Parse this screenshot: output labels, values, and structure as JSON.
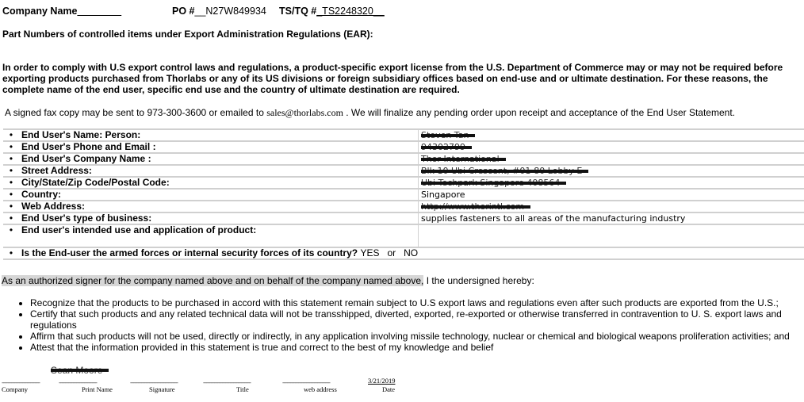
{
  "header": {
    "company_label": "Company Name",
    "company_value": "________",
    "po_label": "PO #",
    "po_value": "__N27W849934",
    "ts_label": "TS/TQ #",
    "ts_value": "_TS2248320__"
  },
  "subtitle": "Part Numbers of controlled items under Export Administration Regulations (EAR):",
  "intro": "In order to comply with U.S export control laws and regulations, a product-specific export license from the U.S. Department of Commerce may or may not be required before exporting products purchased from Thorlabs or any of its US divisions or foreign subsidiary offices based on end-use and or ultimate destination.  For these reasons, the complete name of the end user, specific end use and the country of ultimate destination are required.",
  "fax_note": {
    "before": "A signed fax copy may be sent to 973-300-3600 or emailed to ",
    "email": "sales@thorlabs.com",
    "after": " .    We will finalize any pending order upon receipt and acceptance of the End User Statement."
  },
  "form_rows": [
    {
      "label": "End User's Name: Person:",
      "value": "Steven Tan",
      "redacted": true
    },
    {
      "label": "End User's Phone and Email :",
      "value": "94302799",
      "redacted": true
    },
    {
      "label": "End User's Company Name :",
      "value": "Thor International",
      "redacted": true
    },
    {
      "label": "Street Address:",
      "value": "Blk 10 Ubi Crescent, #01-80 Lobby E",
      "redacted": true
    },
    {
      "label": "City/State/Zip Code/Postal Code:",
      "value": "Ubi Techpark Singapore 408564",
      "redacted": true
    },
    {
      "label": "Country:",
      "value": "Singapore",
      "redacted": false
    },
    {
      "label": "Web Address:",
      "value": "http://www.thorintl.com",
      "redacted": true
    },
    {
      "label": "End User's type of business:",
      "value": "supplies fasteners to all areas of the manufacturing industry",
      "redacted": false
    },
    {
      "label": "End user's intended use and application of product:",
      "value": "",
      "redacted": false
    }
  ],
  "armed_forces": {
    "question": "Is the End-user the armed forces or internal security forces of its country?",
    "options": "YES   or   NO"
  },
  "authorization": {
    "highlighted": "As an authorized signer for the company named above and on behalf of the company named above,",
    "rest": " I the undersigned hereby:"
  },
  "bullets": [
    "Recognize that the products to be purchased in accord with this statement remain subject to U.S export laws and regulations even after such products are exported from the U.S.;",
    "Certify that such products and any related technical data will not be transshipped, diverted, exported, re-exported or otherwise transferred in contravention to U. S. export laws and regulations",
    "Affirm that such products will not be used, directly or indirectly, in any application involving missile technology, nuclear or chemical and biological weapons proliferation activities; and",
    "Attest that the information provided in this statement is true and correct to the best of my knowledge and belief"
  ],
  "signature": {
    "print_name": "Sean Moore",
    "date": "3/21/2019",
    "labels": [
      "Company",
      "Print Name",
      "Signature",
      "Title",
      "web address",
      "Date"
    ]
  }
}
